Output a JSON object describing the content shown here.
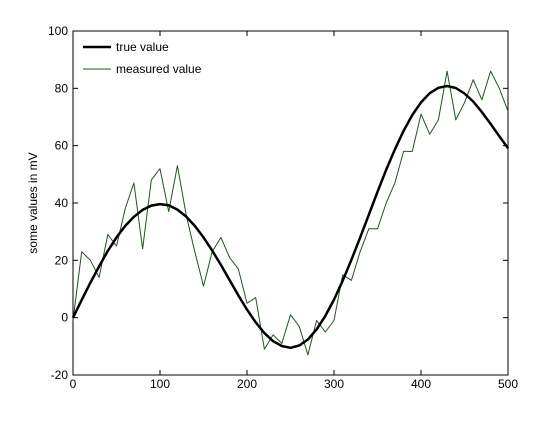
{
  "chart_data": {
    "type": "line",
    "xlabel": "",
    "ylabel": "some values in mV",
    "xlim": [
      0,
      500
    ],
    "ylim": [
      -20,
      100
    ],
    "xticks": [
      0,
      100,
      200,
      300,
      400,
      500
    ],
    "yticks": [
      -20,
      0,
      20,
      40,
      60,
      80,
      100
    ],
    "grid": false,
    "legend_position": "top-left",
    "series": [
      {
        "name": "true value",
        "color": "#000000",
        "style": "thick",
        "x": [
          0,
          10,
          20,
          30,
          40,
          50,
          60,
          70,
          80,
          90,
          100,
          110,
          120,
          130,
          140,
          150,
          160,
          170,
          180,
          190,
          200,
          210,
          220,
          230,
          240,
          250,
          260,
          270,
          280,
          290,
          300,
          310,
          320,
          330,
          340,
          350,
          360,
          370,
          380,
          390,
          400,
          410,
          420,
          430,
          440,
          450,
          460,
          470,
          480,
          490,
          500
        ],
        "y": [
          0,
          6.2,
          12.2,
          17.9,
          23.3,
          28,
          32,
          35.2,
          37.6,
          39.1,
          39.6,
          39.2,
          37.7,
          35.3,
          32,
          28,
          23.4,
          18.4,
          13.1,
          7.8,
          2.8,
          -1.6,
          -5.4,
          -8.2,
          -9.9,
          -10.5,
          -9.7,
          -7.6,
          -4.1,
          0.6,
          6.3,
          12.9,
          20.2,
          27.9,
          35.9,
          43.9,
          51.6,
          58.7,
          65.2,
          70.7,
          75.1,
          78.3,
          80.2,
          80.8,
          80.1,
          78.2,
          75.4,
          71.7,
          67.6,
          63.3,
          59.1
        ]
      },
      {
        "name": "measured value",
        "color": "#1a5a1a",
        "style": "thin",
        "x": [
          0,
          10,
          20,
          30,
          40,
          50,
          60,
          70,
          80,
          90,
          100,
          110,
          120,
          130,
          140,
          150,
          160,
          170,
          180,
          190,
          200,
          210,
          220,
          230,
          240,
          250,
          260,
          270,
          280,
          290,
          300,
          310,
          320,
          330,
          340,
          350,
          360,
          370,
          380,
          390,
          400,
          410,
          420,
          430,
          440,
          450,
          460,
          470,
          480,
          490,
          500
        ],
        "y": [
          -1,
          23,
          20,
          14,
          29,
          25,
          38,
          47,
          24,
          48,
          52,
          37,
          53,
          36,
          23,
          11,
          23,
          28,
          21,
          17,
          5,
          7,
          -11,
          -6,
          -9,
          1,
          -3,
          -13,
          -1,
          -5,
          -1,
          15,
          13,
          23,
          31,
          31,
          40,
          47,
          58,
          58,
          71,
          64,
          69,
          86,
          69,
          75,
          83,
          76,
          86,
          80,
          72
        ]
      }
    ]
  }
}
